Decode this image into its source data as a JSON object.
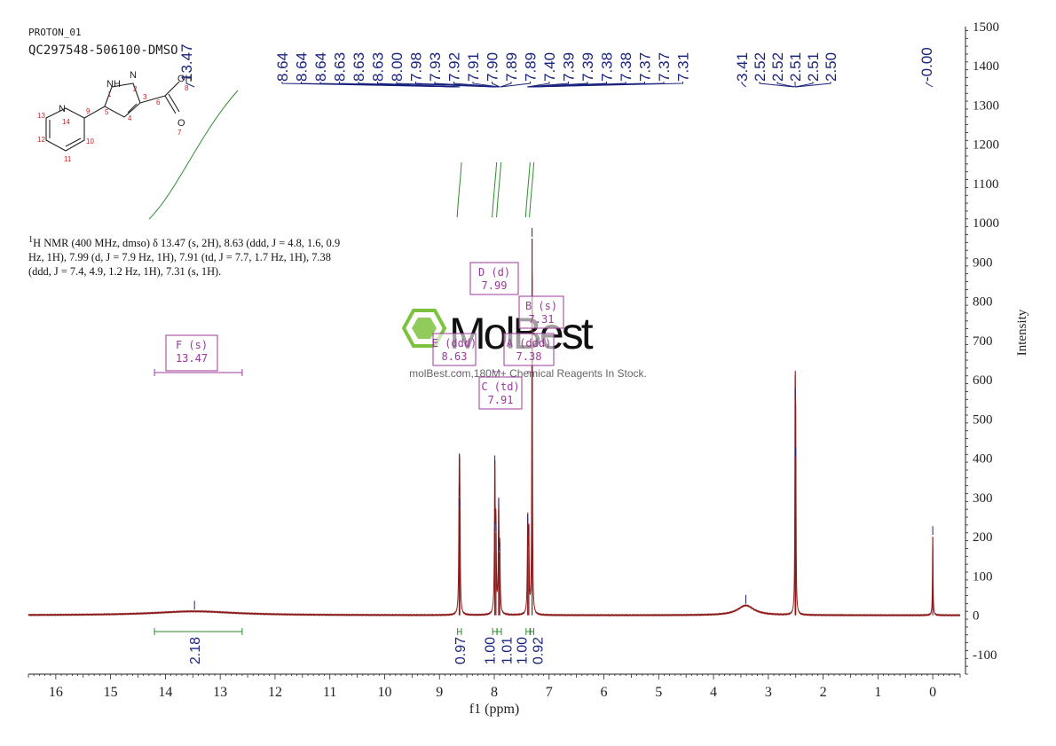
{
  "header": {
    "name": "PROTON_01",
    "sample": "QC297548-506100-DMSO"
  },
  "nmr_text": {
    "sup": "1",
    "body": "H NMR (400 MHz, dmso) δ 13.47 (s, 2H), 8.63 (ddd, J = 4.8, 1.6, 0.9 Hz, 1H), 7.99 (d, J = 7.9 Hz, 1H), 7.91 (td, J = 7.7, 1.7 Hz, 1H), 7.38 (ddd, J = 7.4, 4.9, 1.2 Hz, 1H), 7.31 (s, 1H)."
  },
  "molecule": {
    "atoms": [
      "NH",
      "N",
      "OH",
      "O",
      "N"
    ],
    "numbers": [
      "1",
      "2",
      "3",
      "4",
      "5",
      "6",
      "7",
      "8",
      "9",
      "10",
      "11",
      "12",
      "13",
      "14"
    ]
  },
  "watermark": {
    "brand": "MolBest",
    "tagline": "molBest.com,180M+ Chemical Reagents In Stock."
  },
  "colors": {
    "spectrum": "#8b1a1a",
    "peak_labels": "#1a237e",
    "integral": "#2e8b2e",
    "multiplet": "#9b3a9b",
    "axis": "#222222",
    "watermark_green": "#7cc23f"
  },
  "chart_data": {
    "type": "line",
    "xlabel": "f1 (ppm)",
    "ylabel": "Intensity",
    "xlim": [
      16.5,
      -0.5
    ],
    "ylim": [
      -150,
      1500
    ],
    "x_ticks": [
      16,
      15,
      14,
      13,
      12,
      11,
      10,
      9,
      8,
      7,
      6,
      5,
      4,
      3,
      2,
      1,
      0
    ],
    "y_ticks": [
      -100,
      0,
      100,
      200,
      300,
      400,
      500,
      600,
      700,
      800,
      900,
      1000,
      1100,
      1200,
      1300,
      1400,
      1500
    ],
    "peak_labels_left": [
      "13.47"
    ],
    "peak_labels_group1": [
      "8.64",
      "8.64",
      "8.64",
      "8.63",
      "8.63",
      "8.63",
      "8.00",
      "7.98",
      "7.93",
      "7.92",
      "7.91",
      "7.90",
      "7.89",
      "7.89",
      "7.40",
      "7.39",
      "7.39",
      "7.38",
      "7.38",
      "7.37",
      "7.37",
      "7.31"
    ],
    "peak_labels_group2": [
      "3.41",
      "2.52",
      "2.52",
      "2.51",
      "2.51",
      "2.50"
    ],
    "peak_labels_right": [
      "-0.00"
    ],
    "peaks": [
      {
        "ppm": 13.47,
        "height": 10,
        "width": 0.9
      },
      {
        "ppm": 8.64,
        "height": 300,
        "width": 0.008
      },
      {
        "ppm": 8.63,
        "height": 270,
        "width": 0.008
      },
      {
        "ppm": 7.99,
        "height": 380,
        "width": 0.008
      },
      {
        "ppm": 7.97,
        "height": 210,
        "width": 0.008
      },
      {
        "ppm": 7.92,
        "height": 270,
        "width": 0.008
      },
      {
        "ppm": 7.9,
        "height": 160,
        "width": 0.008
      },
      {
        "ppm": 7.39,
        "height": 230,
        "width": 0.008
      },
      {
        "ppm": 7.37,
        "height": 200,
        "width": 0.008
      },
      {
        "ppm": 7.31,
        "height": 960,
        "width": 0.006
      },
      {
        "ppm": 3.41,
        "height": 25,
        "width": 0.18
      },
      {
        "ppm": 2.51,
        "height": 550,
        "width": 0.006
      },
      {
        "ppm": 2.5,
        "height": 400,
        "width": 0.006
      },
      {
        "ppm": 0.0,
        "height": 200,
        "width": 0.006
      }
    ],
    "integrals": [
      {
        "from": 14.2,
        "to": 12.6,
        "center": 13.47,
        "value": "2.18"
      },
      {
        "from": 8.67,
        "to": 8.6,
        "center": 8.63,
        "value": "0.97"
      },
      {
        "from": 8.03,
        "to": 7.95,
        "center": 7.99,
        "value": "1.00"
      },
      {
        "from": 7.95,
        "to": 7.87,
        "center": 7.91,
        "value": "1.01"
      },
      {
        "from": 7.42,
        "to": 7.35,
        "center": 7.38,
        "value": "1.00"
      },
      {
        "from": 7.34,
        "to": 7.28,
        "center": 7.31,
        "value": "0.92"
      }
    ],
    "multiplets": [
      {
        "label": "F (s)",
        "value": "13.47"
      },
      {
        "label": "D (d)",
        "value": "7.99"
      },
      {
        "label": "B (s)",
        "value": "7.31"
      },
      {
        "label": "E (ddd)",
        "value": "8.63"
      },
      {
        "label": "A (ddd)",
        "value": "7.38"
      },
      {
        "label": "C (td)",
        "value": "7.91"
      }
    ]
  }
}
